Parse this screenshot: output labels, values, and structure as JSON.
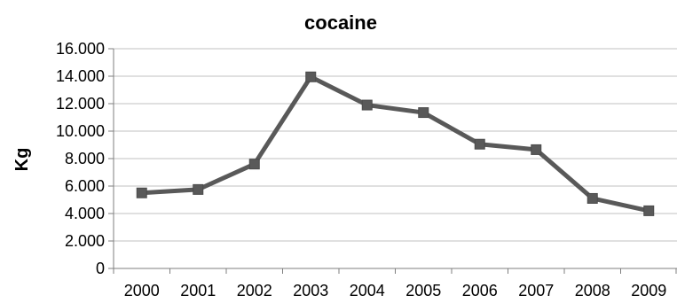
{
  "chart_data": {
    "type": "line",
    "title": "cocaine",
    "xlabel": "",
    "ylabel": "Kg",
    "categories": [
      "2000",
      "2001",
      "2002",
      "2003",
      "2004",
      "2005",
      "2006",
      "2007",
      "2008",
      "2009"
    ],
    "series": [
      {
        "values": [
          5500,
          5750,
          7600,
          13950,
          11900,
          11350,
          9050,
          8650,
          5100,
          4200
        ],
        "color": "#595959",
        "marker": "square"
      }
    ],
    "ylim": [
      0,
      16000
    ],
    "yticks": [
      0,
      2000,
      4000,
      6000,
      8000,
      10000,
      12000,
      14000,
      16000
    ],
    "ytick_labels": [
      "0",
      "2.000",
      "4.000",
      "6.000",
      "8.000",
      "10.000",
      "12.000",
      "14.000",
      "16.000"
    ],
    "grid": true,
    "gridline_color": "#c0c0c0",
    "axis_color": "#7f7f7f",
    "legend": "none"
  }
}
